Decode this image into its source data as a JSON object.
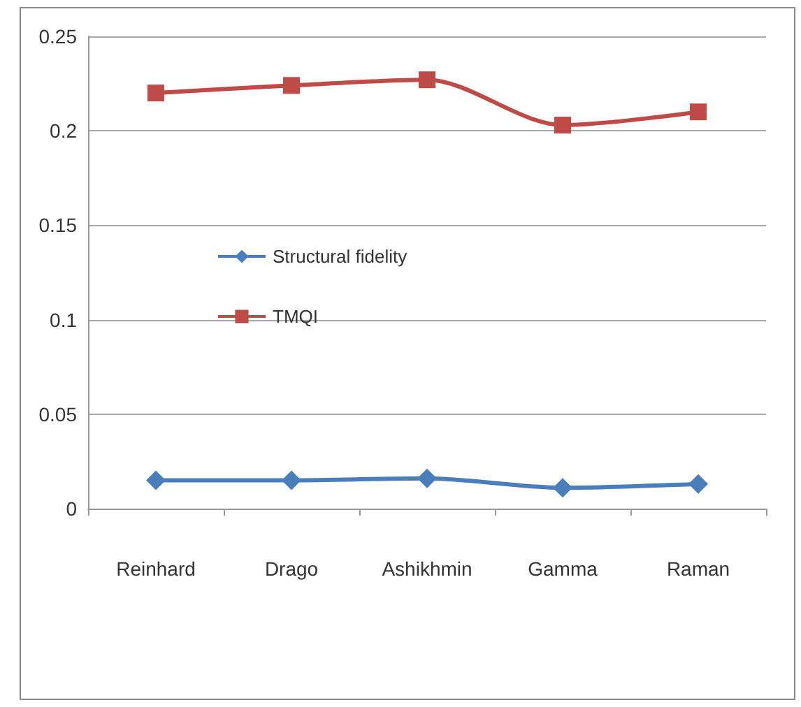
{
  "chart_data": {
    "type": "line",
    "categories": [
      "Reinhard",
      "Drago",
      "Ashikhmin",
      "Gamma",
      "Raman"
    ],
    "series": [
      {
        "name": "Structural fidelity",
        "color": "#4a7ebb",
        "values": [
          0.015,
          0.015,
          0.016,
          0.011,
          0.013
        ],
        "marker": "diamond"
      },
      {
        "name": "TMQI",
        "color": "#be4b48",
        "values": [
          0.22,
          0.224,
          0.227,
          0.203,
          0.21
        ],
        "marker": "square"
      }
    ],
    "ylim": [
      0,
      0.25
    ],
    "yticks": [
      0,
      0.05,
      0.1,
      0.15,
      0.2,
      0.25
    ],
    "grid": "y",
    "legend": "center"
  }
}
